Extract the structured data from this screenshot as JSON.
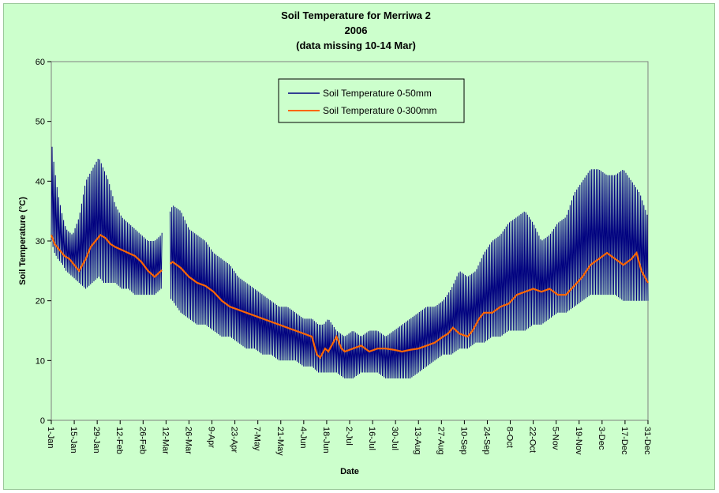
{
  "chart_data": {
    "type": "line",
    "title": "Soil Temperature for Merriwa 2",
    "subtitle": "2006",
    "note": "(data  missing 10-14 Mar)",
    "xlabel": "Date",
    "ylabel": "Soil Temperature (°C)",
    "ylim": [
      0,
      60
    ],
    "yticks": [
      0,
      10,
      20,
      30,
      40,
      50,
      60
    ],
    "xlim": [
      1,
      365
    ],
    "xtick_labels": [
      "1-Jan",
      "15-Jan",
      "29-Jan",
      "12-Feb",
      "26-Feb",
      "12-Mar",
      "26-Mar",
      "9-Apr",
      "23-Apr",
      "7-May",
      "21-May",
      "4-Jun",
      "18-Jun",
      "2-Jul",
      "16-Jul",
      "30-Jul",
      "13-Aug",
      "27-Aug",
      "10-Sep",
      "24-Sep",
      "8-Oct",
      "22-Oct",
      "5-Nov",
      "19-Nov",
      "3-Dec",
      "17-Dec",
      "31-Dec"
    ],
    "grid": false,
    "legend_position": "top-center",
    "missing_days": [
      69,
      73
    ],
    "series": [
      {
        "name": "Soil Temperature 0-50mm",
        "color": "#000080",
        "days": [
          1,
          3,
          5,
          8,
          10,
          14,
          18,
          22,
          26,
          30,
          33,
          36,
          40,
          44,
          48,
          52,
          56,
          60,
          64,
          68,
          75,
          80,
          85,
          90,
          95,
          100,
          105,
          110,
          115,
          120,
          125,
          130,
          135,
          140,
          145,
          150,
          155,
          160,
          164,
          167,
          170,
          175,
          180,
          185,
          190,
          195,
          200,
          205,
          210,
          215,
          220,
          225,
          230,
          235,
          240,
          245,
          250,
          255,
          260,
          265,
          270,
          275,
          280,
          285,
          290,
          295,
          300,
          305,
          310,
          315,
          320,
          325,
          330,
          335,
          340,
          345,
          350,
          355,
          360,
          365
        ],
        "daily_max": [
          47,
          42,
          38,
          34,
          32,
          31,
          34,
          40,
          42,
          44,
          42,
          40,
          36,
          34,
          33,
          32,
          31,
          30,
          30,
          31,
          36,
          35,
          32,
          31,
          30,
          28,
          27,
          26,
          24,
          23,
          22,
          21,
          20,
          19,
          19,
          18,
          17,
          17,
          16,
          16,
          17,
          15,
          14,
          15,
          14,
          15,
          15,
          14,
          15,
          16,
          17,
          18,
          19,
          19,
          20,
          22,
          25,
          24,
          25,
          28,
          30,
          31,
          33,
          34,
          35,
          33,
          30,
          31,
          33,
          34,
          38,
          40,
          42,
          42,
          41,
          41,
          42,
          40,
          38,
          34
        ],
        "daily_min": [
          30,
          28,
          27,
          26,
          25,
          24,
          23,
          22,
          23,
          24,
          23,
          23,
          23,
          22,
          22,
          21,
          21,
          21,
          21,
          22,
          20,
          18,
          17,
          16,
          16,
          15,
          14,
          14,
          13,
          12,
          12,
          11,
          11,
          10,
          10,
          10,
          9,
          9,
          8,
          8,
          8,
          8,
          7,
          7,
          8,
          8,
          8,
          7,
          7,
          7,
          7,
          8,
          9,
          10,
          11,
          11,
          12,
          12,
          13,
          13,
          14,
          14,
          15,
          15,
          15,
          16,
          16,
          17,
          18,
          18,
          19,
          20,
          21,
          21,
          21,
          21,
          20,
          20,
          20,
          20
        ]
      },
      {
        "name": "Soil Temperature  0-300mm",
        "color": "#ff6600",
        "days": [
          1,
          3,
          6,
          9,
          12,
          15,
          18,
          22,
          25,
          28,
          31,
          34,
          37,
          40,
          44,
          48,
          52,
          56,
          60,
          64,
          68,
          75,
          80,
          85,
          90,
          95,
          100,
          105,
          110,
          115,
          120,
          125,
          130,
          135,
          140,
          145,
          150,
          155,
          160,
          163,
          165,
          168,
          170,
          173,
          175,
          178,
          180,
          185,
          190,
          195,
          200,
          205,
          210,
          215,
          220,
          225,
          230,
          235,
          240,
          243,
          246,
          250,
          255,
          258,
          262,
          265,
          270,
          275,
          280,
          285,
          290,
          295,
          300,
          305,
          310,
          315,
          320,
          325,
          330,
          335,
          340,
          345,
          350,
          355,
          358,
          361,
          365
        ],
        "values": [
          31,
          29.5,
          28.5,
          27.5,
          27,
          26,
          25,
          27,
          29,
          30,
          31,
          30.5,
          29.5,
          29,
          28.5,
          28,
          27.5,
          26.5,
          25,
          24,
          25,
          26.5,
          25.5,
          24,
          23,
          22.5,
          21.5,
          20,
          19,
          18.5,
          18,
          17.5,
          17,
          16.5,
          16,
          15.5,
          15,
          14.5,
          14,
          11,
          10.5,
          12,
          11.5,
          13,
          14,
          12,
          11.5,
          12,
          12.5,
          11.5,
          12,
          12,
          11.8,
          11.5,
          11.8,
          12,
          12.5,
          13,
          14,
          14.5,
          15.5,
          14.5,
          14,
          15,
          17,
          18,
          18,
          19,
          19.5,
          21,
          21.5,
          22,
          21.5,
          22,
          21,
          21,
          22.5,
          24,
          26,
          27,
          28,
          27,
          26,
          27,
          28,
          25,
          23
        ]
      }
    ]
  }
}
